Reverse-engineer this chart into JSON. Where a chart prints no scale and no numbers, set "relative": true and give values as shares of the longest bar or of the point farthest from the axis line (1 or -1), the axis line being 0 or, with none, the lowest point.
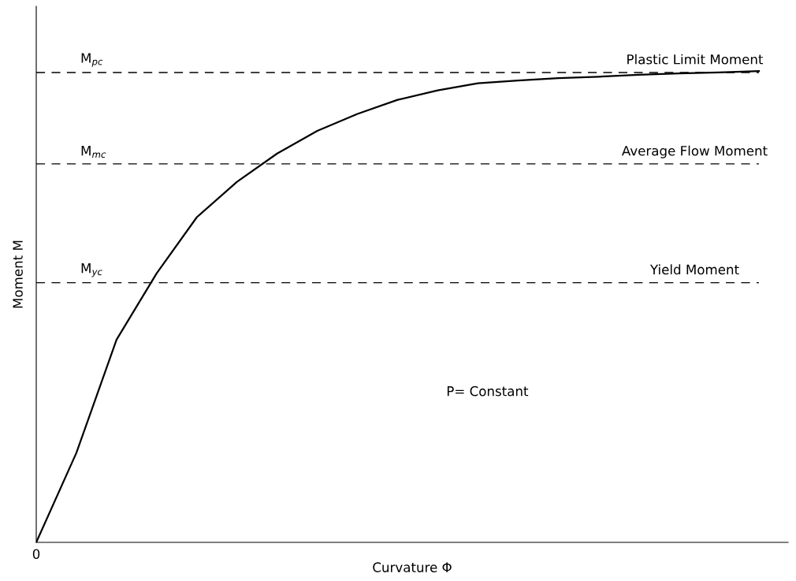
{
  "chart_data": {
    "type": "line",
    "relative": true,
    "xlabel": "Curvature Φ",
    "ylabel": "Moment M",
    "categories": [
      null,
      null,
      null,
      null,
      null,
      null,
      null,
      null,
      null,
      null,
      null,
      null,
      null,
      null,
      null,
      null,
      null,
      null,
      null
    ],
    "values": [
      0,
      0.19,
      0.43,
      0.571,
      0.69,
      0.765,
      0.825,
      0.873,
      0.909,
      0.939,
      0.959,
      0.974,
      0.98,
      0.985,
      0.988,
      0.992,
      0.995,
      0.997,
      1
    ],
    "color": "#000000",
    "line_style": "solid",
    "ref_lines": [
      {
        "axis": "y",
        "value": 0.997,
        "label": "M$_{pc}$",
        "color": "#000000",
        "line_style": "dashed"
      },
      {
        "axis": "y",
        "value": 0.803,
        "label": "M$_{mc}$",
        "color": "#000000",
        "line_style": "dashed"
      },
      {
        "axis": "y",
        "value": 0.551,
        "label": "M$_{yc}$",
        "color": "#000000",
        "line_style": "dashed"
      }
    ],
    "annotations": [
      {
        "text": "Plastic Limit Moment",
        "y": 0.997
      },
      {
        "text": "Average Flow Moment",
        "y": 0.803
      },
      {
        "text": "Yield Moment",
        "y": 0.551
      },
      "P= Constant",
      "0"
    ]
  }
}
